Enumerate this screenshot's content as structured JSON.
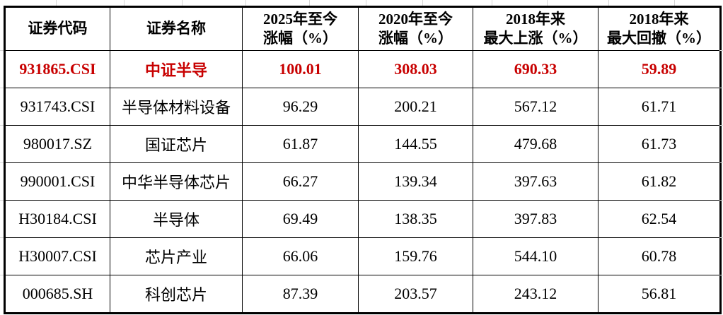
{
  "table": {
    "columns": [
      {
        "label": "证券代码"
      },
      {
        "label": "证券名称"
      },
      {
        "label": "2025年至今\n涨幅（%）"
      },
      {
        "label": "2020年至今\n涨幅（%）"
      },
      {
        "label": "2018年来\n最大上涨（%）"
      },
      {
        "label": "2018年来\n最大回撤（%）"
      }
    ],
    "rows": [
      {
        "code": "931865.CSI",
        "name": "中证半导",
        "pct_2025": "100.01",
        "pct_2020": "308.03",
        "max_rise": "690.33",
        "max_drawdown": "59.89",
        "highlighted": true
      },
      {
        "code": "931743.CSI",
        "name": "半导体材料设备",
        "pct_2025": "96.29",
        "pct_2020": "200.21",
        "max_rise": "567.12",
        "max_drawdown": "61.71",
        "highlighted": false
      },
      {
        "code": "980017.SZ",
        "name": "国证芯片",
        "pct_2025": "61.87",
        "pct_2020": "144.55",
        "max_rise": "479.68",
        "max_drawdown": "61.73",
        "highlighted": false
      },
      {
        "code": "990001.CSI",
        "name": "中华半导体芯片",
        "pct_2025": "66.27",
        "pct_2020": "139.34",
        "max_rise": "397.63",
        "max_drawdown": "61.82",
        "highlighted": false
      },
      {
        "code": "H30184.CSI",
        "name": "半导体",
        "pct_2025": "69.49",
        "pct_2020": "138.35",
        "max_rise": "397.83",
        "max_drawdown": "62.54",
        "highlighted": false
      },
      {
        "code": "H30007.CSI",
        "name": "芯片产业",
        "pct_2025": "66.06",
        "pct_2020": "159.76",
        "max_rise": "544.10",
        "max_drawdown": "60.78",
        "highlighted": false
      },
      {
        "code": "000685.SH",
        "name": "科创芯片",
        "pct_2025": "87.39",
        "pct_2020": "203.57",
        "max_rise": "243.12",
        "max_drawdown": "56.81",
        "highlighted": false
      }
    ]
  },
  "colors": {
    "highlight_text": "#c80000",
    "body_text": "#000000",
    "border": "#000000",
    "gridline_stub": "#d6d6d6"
  }
}
